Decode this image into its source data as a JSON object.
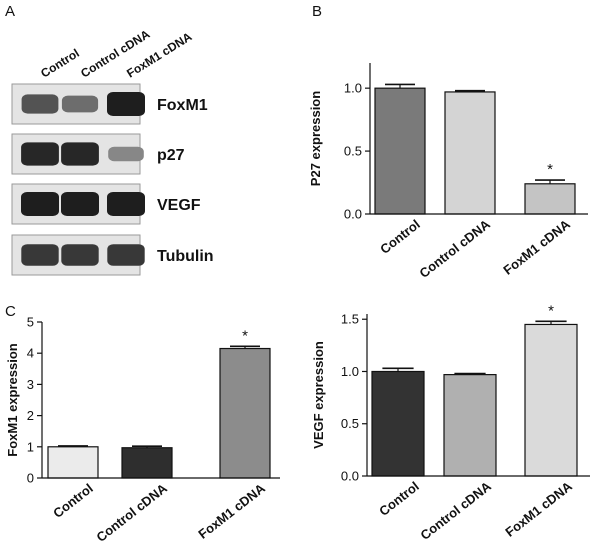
{
  "panel_letters": {
    "a": "A",
    "b": "B",
    "c": "C"
  },
  "western_blot": {
    "lanes": [
      "Control",
      "Control  cDNA",
      "FoxM1  cDNA"
    ],
    "proteins": [
      {
        "name": "FoxM1",
        "band_intensity": [
          0.7,
          0.55,
          1.0
        ]
      },
      {
        "name": "p27",
        "band_intensity": [
          0.95,
          0.95,
          0.4
        ]
      },
      {
        "name": "VEGF",
        "band_intensity": [
          1.0,
          1.0,
          1.0
        ]
      },
      {
        "name": "Tubulin",
        "band_intensity": [
          0.85,
          0.85,
          0.85
        ]
      }
    ]
  },
  "chart_data": [
    {
      "id": "B",
      "type": "bar",
      "ylabel": "P27  expression",
      "categories": [
        "Control",
        "Control  cDNA",
        "FoxM1  cDNA"
      ],
      "values": [
        1.0,
        0.97,
        0.24
      ],
      "errors": [
        0.03,
        0.01,
        0.03
      ],
      "colors": [
        "#7a7a7a",
        "#d4d4d4",
        "#c4c4c4"
      ],
      "significant": [
        false,
        false,
        true
      ],
      "ylim": [
        0,
        1.2
      ],
      "yticks": [
        "0.0",
        "0.5",
        "1.0"
      ],
      "grid": false
    },
    {
      "id": "C-left",
      "type": "bar",
      "ylabel": "FoxM1  expression",
      "categories": [
        "Control",
        "Control  cDNA",
        "FoxM1  cDNA"
      ],
      "values": [
        1.0,
        0.97,
        4.15
      ],
      "errors": [
        0.03,
        0.05,
        0.07
      ],
      "colors": [
        "#ebebeb",
        "#2e2e2e",
        "#8c8c8c"
      ],
      "significant": [
        false,
        false,
        true
      ],
      "ylim": [
        0,
        5
      ],
      "yticks": [
        "0",
        "1",
        "2",
        "3",
        "4",
        "5"
      ],
      "grid": false
    },
    {
      "id": "C-right",
      "type": "bar",
      "ylabel": "VEGF  expression",
      "categories": [
        "Control",
        "Control  cDNA",
        "FoxM1  cDNA"
      ],
      "values": [
        1.0,
        0.97,
        1.45
      ],
      "errors": [
        0.03,
        0.01,
        0.03
      ],
      "colors": [
        "#333333",
        "#b0b0b0",
        "#dadada"
      ],
      "significant": [
        false,
        false,
        true
      ],
      "ylim": [
        0,
        1.55
      ],
      "yticks": [
        "0.0",
        "0.5",
        "1.0",
        "1.5"
      ],
      "grid": false
    }
  ],
  "significance_mark": "*"
}
